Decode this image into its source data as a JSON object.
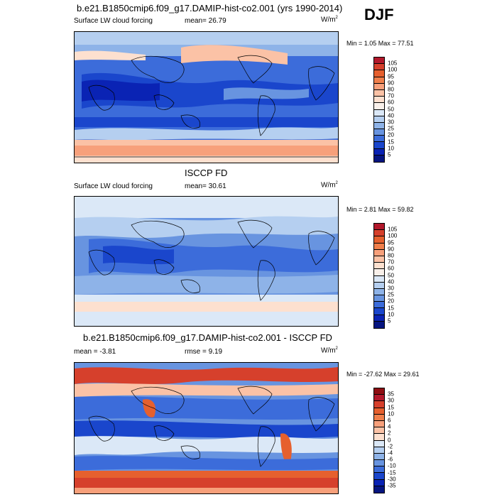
{
  "season": "DJF",
  "panels": [
    {
      "title": "b.e21.B1850cmip6.f09_g17.DAMIP-hist-co2.001 (yrs 1990-2014)",
      "left_label": "Surface LW cloud forcing",
      "mid_label": "mean=  26.79",
      "units": "W/m",
      "units_sup": "2",
      "minmax": "Min =   1.05 Max =   77.51",
      "colorbar": {
        "labels": [
          "105",
          "100",
          "95",
          "90",
          "80",
          "70",
          "60",
          "50",
          "40",
          "30",
          "25",
          "20",
          "15",
          "10",
          "5"
        ],
        "colors": [
          "#b2182b",
          "#d6402c",
          "#e6602e",
          "#f07f4b",
          "#f7a07b",
          "#fbc2a6",
          "#fde0cf",
          "#f9f0ea",
          "#dbe8f7",
          "#b5cff0",
          "#8eb3e8",
          "#6894e0",
          "#3c6cda",
          "#1a46cc",
          "#0a23b4",
          "#061580"
        ]
      }
    },
    {
      "title": "ISCCP FD",
      "left_label": "Surface LW cloud forcing",
      "mid_label": "mean=  30.61",
      "units": "W/m",
      "units_sup": "2",
      "minmax": "Min =   2.81 Max =   59.82",
      "colorbar": {
        "labels": [
          "105",
          "100",
          "95",
          "90",
          "80",
          "70",
          "60",
          "50",
          "40",
          "30",
          "25",
          "20",
          "15",
          "10",
          "5"
        ],
        "colors": [
          "#b2182b",
          "#d6402c",
          "#e6602e",
          "#f07f4b",
          "#f7a07b",
          "#fbc2a6",
          "#fde0cf",
          "#f9f0ea",
          "#dbe8f7",
          "#b5cff0",
          "#8eb3e8",
          "#6894e0",
          "#3c6cda",
          "#1a46cc",
          "#0a23b4",
          "#061580"
        ]
      }
    },
    {
      "title": "b.e21.B1850cmip6.f09_g17.DAMIP-hist-co2.001 - ISCCP FD",
      "left_label": "mean =  -3.81",
      "mid_label": "rmse =   9.19",
      "units": "W/m",
      "units_sup": "2",
      "minmax": "Min = -27.62 Max =  29.61",
      "colorbar": {
        "labels": [
          "35",
          "30",
          "15",
          "10",
          "6",
          "4",
          "2",
          "0",
          "-2",
          "-4",
          "-6",
          "-10",
          "-15",
          "-30",
          "-35"
        ],
        "colors": [
          "#8e0d12",
          "#b2182b",
          "#d6402c",
          "#e6602e",
          "#f07f4b",
          "#f7a07b",
          "#fbc2a6",
          "#fde0cf",
          "#dbe8f7",
          "#b5cff0",
          "#8eb3e8",
          "#6894e0",
          "#3c6cda",
          "#1a46cc",
          "#0a23b4",
          "#061580"
        ]
      }
    }
  ]
}
